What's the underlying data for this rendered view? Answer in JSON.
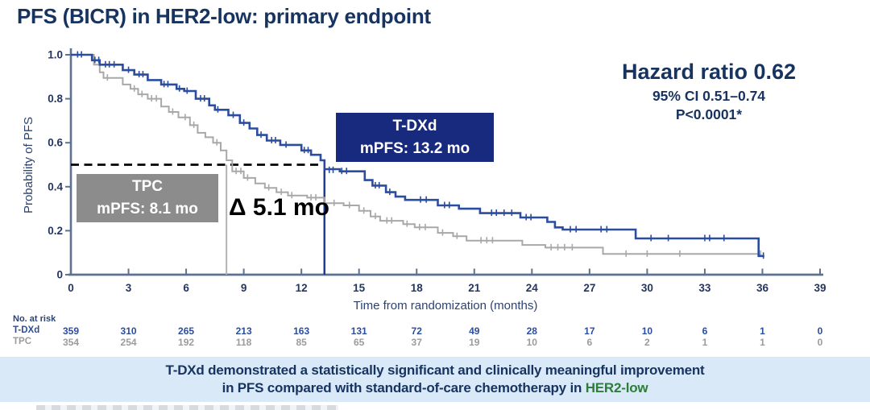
{
  "title": "PFS (BICR) in HER2-low: primary endpoint",
  "stats": {
    "hazard_ratio": "Hazard ratio 0.62",
    "confidence_interval": "95% CI 0.51–0.74",
    "p_value": "P<0.0001*"
  },
  "labels": {
    "tdxd_box": {
      "line1": "T-DXd",
      "line2": "mPFS: 13.2 mo",
      "bg_color": "#182a7d"
    },
    "tpc_box": {
      "line1": "TPC",
      "line2": "mPFS: 8.1 mo",
      "bg_color": "#8c8c8c"
    },
    "delta": "Δ 5.1 mo"
  },
  "chart_data": {
    "type": "line",
    "subtype": "kaplan-meier-step",
    "xlabel": "Time from randomization (months)",
    "ylabel": "Probability of PFS",
    "xlim": [
      0,
      39
    ],
    "ylim": [
      0,
      1.0
    ],
    "x_ticks": [
      0,
      3,
      6,
      9,
      12,
      15,
      18,
      21,
      24,
      27,
      30,
      33,
      36,
      39
    ],
    "y_ticks": [
      {
        "v": 0,
        "label": "0"
      },
      {
        "v": 0.2,
        "label": "0.2"
      },
      {
        "v": 0.4,
        "label": "0.4"
      },
      {
        "v": 0.6,
        "label": "0.6"
      },
      {
        "v": 0.8,
        "label": "0.8"
      },
      {
        "v": 1.0,
        "label": "1.0"
      }
    ],
    "grid": false,
    "reference_lines": {
      "median_probability": 0.5,
      "delta_months": 5.1
    },
    "series": [
      {
        "name": "T-DXd",
        "color": "#2b4da0",
        "median_months": 13.2,
        "points": [
          [
            0,
            1.0
          ],
          [
            1.1,
            0.975
          ],
          [
            1.5,
            0.955
          ],
          [
            2.7,
            0.93
          ],
          [
            3.3,
            0.91
          ],
          [
            4.0,
            0.885
          ],
          [
            4.7,
            0.865
          ],
          [
            5.5,
            0.845
          ],
          [
            5.9,
            0.835
          ],
          [
            6.5,
            0.8
          ],
          [
            7.2,
            0.77
          ],
          [
            7.5,
            0.75
          ],
          [
            8.2,
            0.725
          ],
          [
            8.8,
            0.69
          ],
          [
            9.3,
            0.665
          ],
          [
            9.7,
            0.635
          ],
          [
            10.2,
            0.61
          ],
          [
            10.9,
            0.59
          ],
          [
            12.0,
            0.565
          ],
          [
            12.5,
            0.545
          ],
          [
            13.0,
            0.52
          ],
          [
            13.2,
            0.48
          ],
          [
            14.0,
            0.47
          ],
          [
            15.3,
            0.43
          ],
          [
            15.7,
            0.405
          ],
          [
            16.4,
            0.375
          ],
          [
            16.9,
            0.355
          ],
          [
            17.4,
            0.34
          ],
          [
            19.1,
            0.315
          ],
          [
            20.2,
            0.3
          ],
          [
            21.3,
            0.28
          ],
          [
            23.4,
            0.26
          ],
          [
            24.8,
            0.24
          ],
          [
            25.2,
            0.215
          ],
          [
            25.6,
            0.205
          ],
          [
            29.4,
            0.165
          ],
          [
            35.8,
            0.085
          ],
          [
            36.1,
            0.085
          ]
        ],
        "censors": [
          [
            0.35,
            1.0
          ],
          [
            0.55,
            1.0
          ],
          [
            1.25,
            0.975
          ],
          [
            1.45,
            0.975
          ],
          [
            1.8,
            0.955
          ],
          [
            2.0,
            0.955
          ],
          [
            2.25,
            0.955
          ],
          [
            3.0,
            0.93
          ],
          [
            3.55,
            0.91
          ],
          [
            3.75,
            0.91
          ],
          [
            4.85,
            0.865
          ],
          [
            5.05,
            0.865
          ],
          [
            5.65,
            0.845
          ],
          [
            6.05,
            0.835
          ],
          [
            6.75,
            0.8
          ],
          [
            6.95,
            0.8
          ],
          [
            7.65,
            0.75
          ],
          [
            8.45,
            0.725
          ],
          [
            9.0,
            0.69
          ],
          [
            9.9,
            0.635
          ],
          [
            10.45,
            0.61
          ],
          [
            10.65,
            0.61
          ],
          [
            11.2,
            0.59
          ],
          [
            12.15,
            0.565
          ],
          [
            12.35,
            0.565
          ],
          [
            13.45,
            0.475
          ],
          [
            13.65,
            0.475
          ],
          [
            14.1,
            0.47
          ],
          [
            14.35,
            0.47
          ],
          [
            15.85,
            0.405
          ],
          [
            16.05,
            0.405
          ],
          [
            16.6,
            0.375
          ],
          [
            18.2,
            0.34
          ],
          [
            18.5,
            0.34
          ],
          [
            19.45,
            0.315
          ],
          [
            19.7,
            0.315
          ],
          [
            21.9,
            0.28
          ],
          [
            22.15,
            0.28
          ],
          [
            22.55,
            0.28
          ],
          [
            22.95,
            0.28
          ],
          [
            23.7,
            0.26
          ],
          [
            23.95,
            0.26
          ],
          [
            26.0,
            0.205
          ],
          [
            26.3,
            0.205
          ],
          [
            27.6,
            0.205
          ],
          [
            27.9,
            0.205
          ],
          [
            30.2,
            0.165
          ],
          [
            31.1,
            0.165
          ],
          [
            33.0,
            0.165
          ],
          [
            33.25,
            0.165
          ],
          [
            34.0,
            0.165
          ],
          [
            36.05,
            0.085
          ]
        ]
      },
      {
        "name": "TPC",
        "color": "#a8a8a8",
        "median_months": 8.1,
        "points": [
          [
            0,
            1.0
          ],
          [
            1.2,
            0.955
          ],
          [
            1.5,
            0.92
          ],
          [
            1.7,
            0.895
          ],
          [
            2.7,
            0.865
          ],
          [
            3.1,
            0.845
          ],
          [
            3.5,
            0.82
          ],
          [
            4.0,
            0.8
          ],
          [
            4.7,
            0.765
          ],
          [
            5.1,
            0.74
          ],
          [
            5.6,
            0.715
          ],
          [
            6.2,
            0.68
          ],
          [
            6.6,
            0.645
          ],
          [
            7.0,
            0.625
          ],
          [
            7.4,
            0.6
          ],
          [
            7.8,
            0.565
          ],
          [
            8.1,
            0.52
          ],
          [
            8.4,
            0.47
          ],
          [
            9.0,
            0.44
          ],
          [
            9.6,
            0.415
          ],
          [
            10.1,
            0.395
          ],
          [
            10.7,
            0.375
          ],
          [
            11.3,
            0.36
          ],
          [
            12.3,
            0.35
          ],
          [
            13.2,
            0.325
          ],
          [
            14.2,
            0.315
          ],
          [
            15.0,
            0.29
          ],
          [
            15.6,
            0.265
          ],
          [
            16.1,
            0.245
          ],
          [
            17.3,
            0.23
          ],
          [
            17.9,
            0.215
          ],
          [
            19.1,
            0.19
          ],
          [
            19.9,
            0.175
          ],
          [
            20.6,
            0.155
          ],
          [
            23.5,
            0.135
          ],
          [
            24.7,
            0.123
          ],
          [
            27.7,
            0.094
          ],
          [
            35.9,
            0.094
          ]
        ],
        "censors": [
          [
            1.9,
            0.895
          ],
          [
            3.3,
            0.845
          ],
          [
            3.7,
            0.82
          ],
          [
            4.2,
            0.8
          ],
          [
            4.45,
            0.8
          ],
          [
            5.3,
            0.74
          ],
          [
            5.95,
            0.715
          ],
          [
            6.4,
            0.68
          ],
          [
            7.6,
            0.6
          ],
          [
            8.6,
            0.47
          ],
          [
            8.85,
            0.47
          ],
          [
            9.2,
            0.44
          ],
          [
            10.3,
            0.395
          ],
          [
            10.95,
            0.375
          ],
          [
            11.5,
            0.36
          ],
          [
            12.5,
            0.35
          ],
          [
            12.75,
            0.35
          ],
          [
            13.7,
            0.325
          ],
          [
            14.5,
            0.315
          ],
          [
            15.25,
            0.29
          ],
          [
            15.85,
            0.265
          ],
          [
            16.45,
            0.245
          ],
          [
            16.7,
            0.245
          ],
          [
            17.5,
            0.23
          ],
          [
            18.15,
            0.215
          ],
          [
            18.45,
            0.215
          ],
          [
            19.35,
            0.19
          ],
          [
            20.1,
            0.175
          ],
          [
            21.35,
            0.155
          ],
          [
            21.65,
            0.155
          ],
          [
            21.95,
            0.155
          ],
          [
            25.0,
            0.123
          ],
          [
            25.35,
            0.123
          ],
          [
            25.7,
            0.123
          ],
          [
            26.1,
            0.123
          ],
          [
            28.9,
            0.094
          ],
          [
            30.0,
            0.094
          ],
          [
            31.7,
            0.094
          ],
          [
            35.9,
            0.094
          ]
        ]
      }
    ]
  },
  "at_risk": {
    "label": "No. at risk",
    "months": [
      0,
      3,
      6,
      9,
      12,
      15,
      18,
      21,
      24,
      27,
      30,
      33,
      36,
      39
    ],
    "rows": [
      {
        "name": "T-DXd",
        "color": "#2b4da0",
        "values": [
          359,
          310,
          265,
          213,
          163,
          131,
          72,
          49,
          28,
          17,
          10,
          6,
          1,
          0
        ]
      },
      {
        "name": "TPC",
        "color": "#9b9b9b",
        "values": [
          354,
          254,
          192,
          118,
          85,
          65,
          37,
          19,
          10,
          6,
          2,
          1,
          1,
          0
        ]
      }
    ]
  },
  "banner": {
    "bg_color": "#d9e9f8",
    "line1": "T-DXd demonstrated a statistically significant and clinically meaningful improvement",
    "line2_prefix": "in PFS compared with standard-of-care chemotherapy in ",
    "line2_highlight": "HER2-low",
    "highlight_color": "#2e7d3c"
  }
}
